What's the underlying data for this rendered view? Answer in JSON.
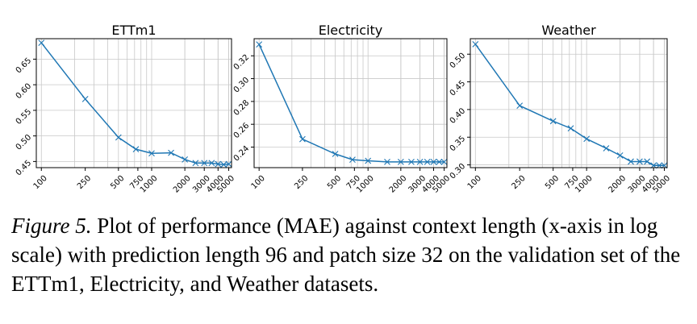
{
  "chart_data": [
    {
      "type": "line",
      "title": "ETTm1",
      "x_scale": "log",
      "xlim": [
        90,
        5300
      ],
      "ylim": [
        0.438,
        0.69
      ],
      "x": [
        100,
        250,
        500,
        720,
        1000,
        1500,
        2000,
        2500,
        3000,
        3500,
        4000,
        4500,
        5000
      ],
      "values": [
        0.682,
        0.572,
        0.497,
        0.474,
        0.466,
        0.467,
        0.454,
        0.447,
        0.447,
        0.447,
        0.445,
        0.444,
        0.445
      ],
      "xticks": [
        100,
        250,
        500,
        750,
        1000,
        2000,
        3000,
        4000,
        5000
      ],
      "xtick_labels": [
        "100",
        "250",
        "500",
        "750",
        "1000",
        "2000",
        "3000",
        "4000",
        "5000"
      ],
      "yticks": [
        0.45,
        0.5,
        0.55,
        0.6,
        0.65
      ],
      "ytick_labels": [
        "0.45",
        "0.50",
        "0.55",
        "0.60",
        "0.65"
      ],
      "grid": true,
      "color": "#1f77b4",
      "marker": "x"
    },
    {
      "type": "line",
      "title": "Electricity",
      "x_scale": "log",
      "xlim": [
        90,
        5300
      ],
      "ylim": [
        0.222,
        0.335
      ],
      "x": [
        100,
        250,
        500,
        720,
        1000,
        1500,
        2000,
        2500,
        3000,
        3500,
        4000,
        4500,
        5000
      ],
      "values": [
        0.33,
        0.247,
        0.234,
        0.229,
        0.228,
        0.227,
        0.227,
        0.227,
        0.227,
        0.227,
        0.227,
        0.227,
        0.227
      ],
      "xticks": [
        100,
        250,
        500,
        750,
        1000,
        2000,
        3000,
        4000,
        5000
      ],
      "xtick_labels": [
        "100",
        "250",
        "500",
        "750",
        "1000",
        "2000",
        "3000",
        "4000",
        "5000"
      ],
      "yticks": [
        0.24,
        0.26,
        0.28,
        0.3,
        0.32
      ],
      "ytick_labels": [
        "0.24",
        "0.26",
        "0.28",
        "0.30",
        "0.32"
      ],
      "grid": true,
      "color": "#1f77b4",
      "marker": "x"
    },
    {
      "type": "line",
      "title": "Weather",
      "x_scale": "log",
      "xlim": [
        90,
        5300
      ],
      "ylim": [
        0.295,
        0.528
      ],
      "x": [
        100,
        250,
        500,
        720,
        1000,
        1500,
        2000,
        2500,
        3000,
        3500,
        4000,
        4500,
        5000
      ],
      "values": [
        0.518,
        0.407,
        0.379,
        0.366,
        0.347,
        0.33,
        0.317,
        0.306,
        0.306,
        0.306,
        0.299,
        0.299,
        0.299
      ],
      "xticks": [
        100,
        250,
        500,
        750,
        1000,
        2000,
        3000,
        4000,
        5000
      ],
      "xtick_labels": [
        "100",
        "250",
        "500",
        "750",
        "1000",
        "2000",
        "3000",
        "4000",
        "5000"
      ],
      "yticks": [
        0.3,
        0.35,
        0.4,
        0.45,
        0.5
      ],
      "ytick_labels": [
        "0.30",
        "0.35",
        "0.40",
        "0.45",
        "0.50"
      ],
      "grid": true,
      "color": "#1f77b4",
      "marker": "x"
    }
  ],
  "caption": {
    "label": "Figure 5.",
    "text": " Plot of performance (MAE) against context length (x-axis in log scale) with prediction length 96 and patch size 32 on the validation set of the ETTm1, Electricity, and Weather datasets."
  }
}
